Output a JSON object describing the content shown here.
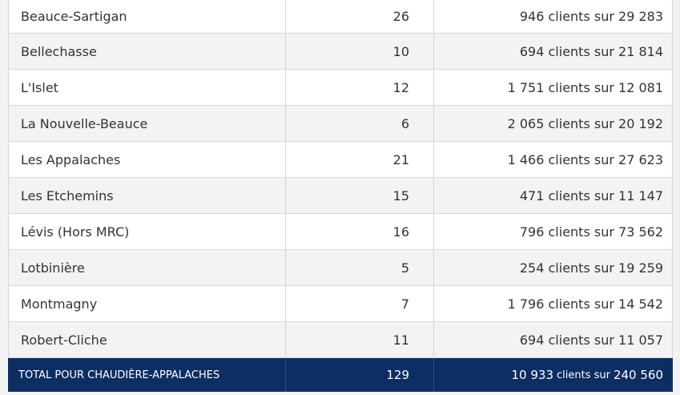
{
  "rows": [
    {
      "name": "Beauce-Sartigan",
      "count": "26",
      "clients": "946 clients sur 29 283"
    },
    {
      "name": "Bellechasse",
      "count": "10",
      "clients": "694 clients sur 21 814"
    },
    {
      "name": "L'Islet",
      "count": "12",
      "clients": "1 751 clients sur 12 081"
    },
    {
      "name": "La Nouvelle-Beauce",
      "count": "6",
      "clients": "2 065 clients sur 20 192"
    },
    {
      "name": "Les Appalaches",
      "count": "21",
      "clients": "1 466 clients sur 27 623"
    },
    {
      "name": "Les Etchemins",
      "count": "15",
      "clients": "471 clients sur 11 147"
    },
    {
      "name": "Lévis (Hors MRC)",
      "count": "16",
      "clients": "796 clients sur 73 562"
    },
    {
      "name": "Lotbinière",
      "count": "5",
      "clients": "254 clients sur 19 259"
    },
    {
      "name": "Montmagny",
      "count": "7",
      "clients": "1 796 clients sur 14 542"
    },
    {
      "name": "Robert-Cliche",
      "count": "11",
      "clients": "694 clients sur 11 057"
    }
  ],
  "total": {
    "label": "TOTAL POUR CHAUDIÈRE-APPALACHES",
    "count": "129",
    "clients_value": "10 933",
    "clients_middle": "clients sur",
    "clients_total": "240 560"
  },
  "colors": {
    "total_background": "#0d2e63",
    "row_even": "#f3f3f3",
    "row_odd": "#ffffff"
  }
}
